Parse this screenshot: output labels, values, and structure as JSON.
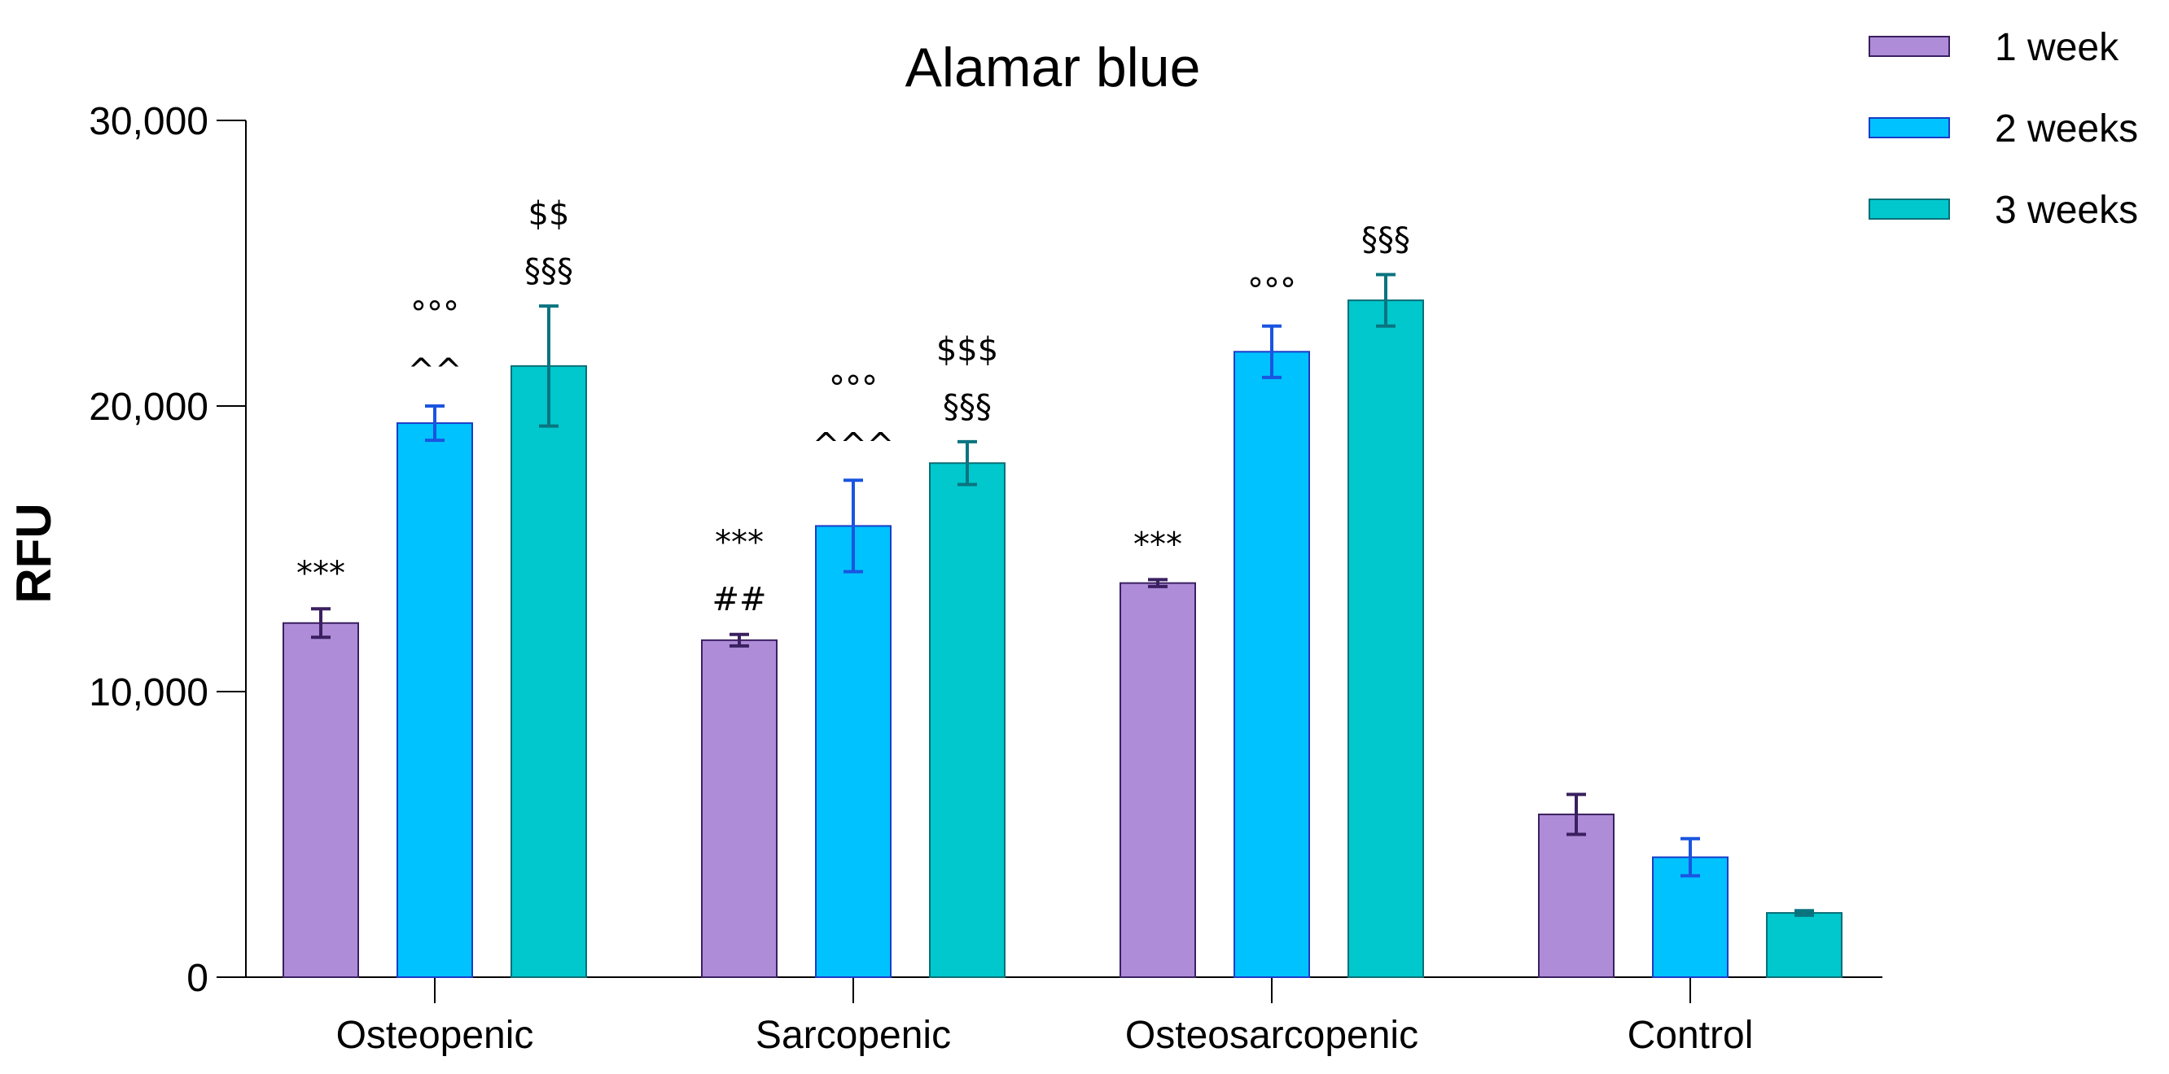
{
  "chart_data": {
    "type": "bar",
    "title": "Alamar blue",
    "xlabel": "",
    "ylabel": "RFU",
    "ylim": [
      0,
      30000
    ],
    "yticks": [
      0,
      10000,
      20000,
      30000
    ],
    "ytick_labels": [
      "0",
      "10,000",
      "20,000",
      "30,000"
    ],
    "categories": [
      "Osteopenic",
      "Sarcopenic",
      "Osteosarcopenic",
      "Control"
    ],
    "legend_position": "top-right",
    "series": [
      {
        "name": "1 week",
        "color": "#ae8cd8",
        "edge": "#3a2060",
        "error_color": "#3a2060",
        "values": [
          12400,
          11800,
          13800,
          5700
        ],
        "errors": [
          500,
          200,
          120,
          700
        ],
        "annotations": [
          [
            "***"
          ],
          [
            "***",
            "##"
          ],
          [
            "***"
          ],
          []
        ]
      },
      {
        "name": "2 weeks",
        "color": "#00c2ff",
        "edge": "#1a3cc8",
        "error_color": "#1a55e0",
        "values": [
          19400,
          15800,
          21900,
          4200
        ],
        "errors": [
          600,
          1600,
          900,
          650
        ],
        "annotations": [
          [
            "°°°",
            "^^"
          ],
          [
            "°°°",
            "^^^"
          ],
          [
            "°°°"
          ],
          []
        ]
      },
      {
        "name": "3 weeks",
        "color": "#00c8cc",
        "edge": "#0a6f77",
        "error_color": "#0a7480",
        "values": [
          21400,
          18000,
          23700,
          2250
        ],
        "errors": [
          2100,
          750,
          900,
          80
        ],
        "annotations": [
          [
            "$$",
            "§§§"
          ],
          [
            "$$$",
            "§§§"
          ],
          [
            "§§§"
          ],
          []
        ]
      }
    ]
  }
}
